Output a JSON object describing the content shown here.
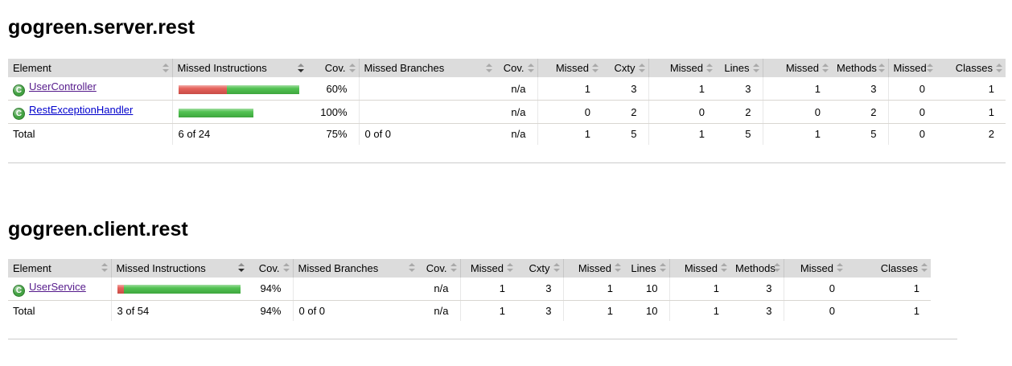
{
  "icons": {
    "class_glyph": "C"
  },
  "colors": {
    "bar_red": "#e4564f",
    "bar_green": "#45bd45",
    "header_bg": "#dcdcdc",
    "link": "#0000cc",
    "link_visited": "#551a8b",
    "class_icon_green": "#43a143"
  },
  "sections": [
    {
      "title": "gogreen.server.rest",
      "columns": [
        {
          "label": "Element",
          "sort": "none"
        },
        {
          "label": "Missed Instructions",
          "sort": "desc"
        },
        {
          "label": "Cov.",
          "sort": "none"
        },
        {
          "label": "Missed Branches",
          "sort": "none"
        },
        {
          "label": "Cov.",
          "sort": "none"
        },
        {
          "label": "Missed",
          "sort": "none"
        },
        {
          "label": "Cxty",
          "sort": "none"
        },
        {
          "label": "Missed",
          "sort": "none"
        },
        {
          "label": "Lines",
          "sort": "none"
        },
        {
          "label": "Missed",
          "sort": "none"
        },
        {
          "label": "Methods",
          "sort": "none"
        },
        {
          "label": "Missed",
          "sort": "none"
        },
        {
          "label": "Classes",
          "sort": "none"
        }
      ],
      "rows": [
        {
          "name": "UserController",
          "visited": true,
          "bar": {
            "red": 60,
            "green": 90
          },
          "instr_cov": "60%",
          "branches": "",
          "branch_cov": "n/a",
          "missed_cxty": "1",
          "cxty": "3",
          "missed_lines": "1",
          "lines": "3",
          "missed_methods": "1",
          "methods": "3",
          "missed_classes": "0",
          "classes": "1"
        },
        {
          "name": "RestExceptionHandler",
          "visited": false,
          "bar": {
            "red": 0,
            "green": 93
          },
          "instr_cov": "100%",
          "branches": "",
          "branch_cov": "n/a",
          "missed_cxty": "0",
          "cxty": "2",
          "missed_lines": "0",
          "lines": "2",
          "missed_methods": "0",
          "methods": "2",
          "missed_classes": "0",
          "classes": "1"
        }
      ],
      "total": {
        "label": "Total",
        "instructions": "6 of 24",
        "instr_cov": "75%",
        "branches": "0 of 0",
        "branch_cov": "n/a",
        "missed_cxty": "1",
        "cxty": "5",
        "missed_lines": "1",
        "lines": "5",
        "missed_methods": "1",
        "methods": "5",
        "missed_classes": "0",
        "classes": "2"
      }
    },
    {
      "title": "gogreen.client.rest",
      "columns": [
        {
          "label": "Element",
          "sort": "none"
        },
        {
          "label": "Missed Instructions",
          "sort": "desc"
        },
        {
          "label": "Cov.",
          "sort": "none"
        },
        {
          "label": "Missed Branches",
          "sort": "none"
        },
        {
          "label": "Cov.",
          "sort": "none"
        },
        {
          "label": "Missed",
          "sort": "none"
        },
        {
          "label": "Cxty",
          "sort": "none"
        },
        {
          "label": "Missed",
          "sort": "none"
        },
        {
          "label": "Lines",
          "sort": "none"
        },
        {
          "label": "Missed",
          "sort": "none"
        },
        {
          "label": "Methods",
          "sort": "none"
        },
        {
          "label": "Missed",
          "sort": "none"
        },
        {
          "label": "Classes",
          "sort": "none"
        }
      ],
      "rows": [
        {
          "name": "UserService",
          "visited": true,
          "bar": {
            "red": 8,
            "green": 145
          },
          "instr_cov": "94%",
          "branches": "",
          "branch_cov": "n/a",
          "missed_cxty": "1",
          "cxty": "3",
          "missed_lines": "1",
          "lines": "10",
          "missed_methods": "1",
          "methods": "3",
          "missed_classes": "0",
          "classes": "1"
        }
      ],
      "total": {
        "label": "Total",
        "instructions": "3 of 54",
        "instr_cov": "94%",
        "branches": "0 of 0",
        "branch_cov": "n/a",
        "missed_cxty": "1",
        "cxty": "3",
        "missed_lines": "1",
        "lines": "10",
        "missed_methods": "1",
        "methods": "3",
        "missed_classes": "0",
        "classes": "1"
      }
    }
  ]
}
